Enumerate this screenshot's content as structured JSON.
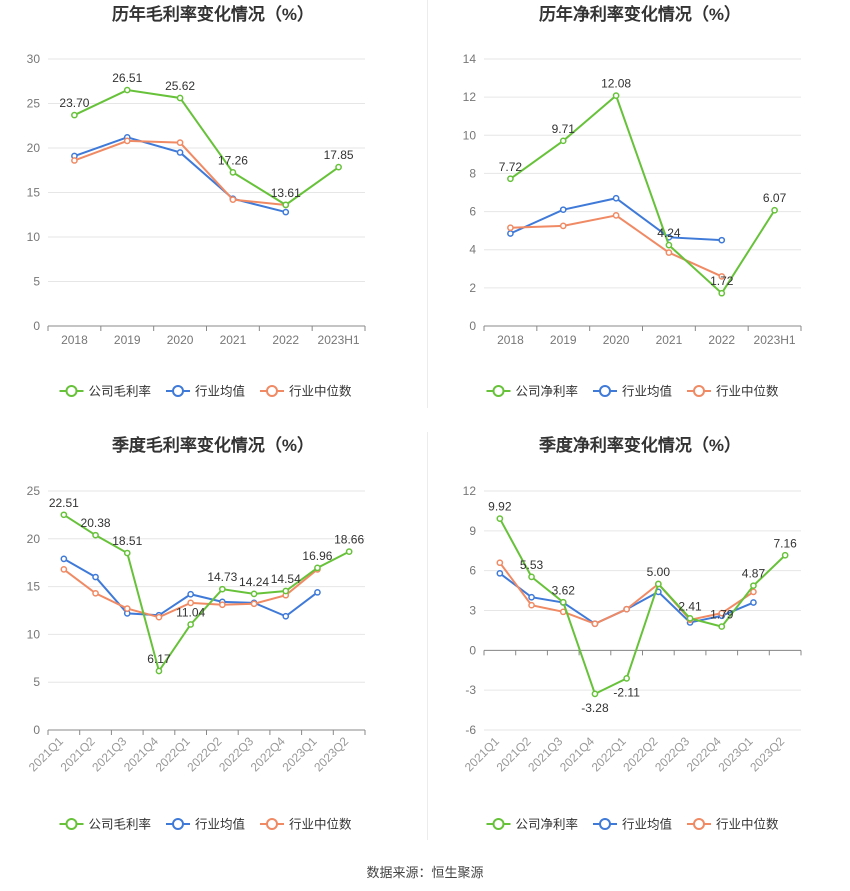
{
  "colors": {
    "company": "#67c23a",
    "avg": "#3f7ad9",
    "median": "#f08a64",
    "grid": "#e6e6e6",
    "axis": "#666666"
  },
  "source": "数据来源：恒生聚源",
  "chart_data": [
    {
      "type": "line",
      "title": "历年毛利率变化情况（%）",
      "categories": [
        "2018",
        "2019",
        "2020",
        "2021",
        "2022",
        "2023H1"
      ],
      "ylim": [
        0,
        30
      ],
      "yticks": [
        0,
        5,
        10,
        15,
        20,
        25,
        30
      ],
      "rotate_x_labels": false,
      "legend_position": "bottom",
      "series": [
        {
          "name": "公司毛利率",
          "role": "company",
          "values": [
            23.7,
            26.51,
            25.62,
            17.26,
            13.61,
            17.85
          ],
          "labels": [
            "23.70",
            "26.51",
            "25.62",
            "17.26",
            "13.61",
            "17.85"
          ]
        },
        {
          "name": "行业均值",
          "role": "avg",
          "values": [
            19.1,
            21.2,
            19.5,
            14.3,
            12.8,
            null
          ]
        },
        {
          "name": "行业中位数",
          "role": "median",
          "values": [
            18.6,
            20.8,
            20.6,
            14.2,
            13.6,
            null
          ]
        }
      ]
    },
    {
      "type": "line",
      "title": "历年净利率变化情况（%）",
      "categories": [
        "2018",
        "2019",
        "2020",
        "2021",
        "2022",
        "2023H1"
      ],
      "ylim": [
        0,
        14
      ],
      "yticks": [
        0,
        2,
        4,
        6,
        8,
        10,
        12,
        14
      ],
      "rotate_x_labels": false,
      "legend_position": "bottom",
      "series": [
        {
          "name": "公司净利率",
          "role": "company",
          "values": [
            7.72,
            9.71,
            12.08,
            4.24,
            1.72,
            6.07
          ],
          "labels": [
            "7.72",
            "9.71",
            "12.08",
            "4.24",
            "1.72",
            "6.07"
          ]
        },
        {
          "name": "行业均值",
          "role": "avg",
          "values": [
            4.85,
            6.1,
            6.7,
            4.65,
            4.5,
            null
          ]
        },
        {
          "name": "行业中位数",
          "role": "median",
          "values": [
            5.15,
            5.25,
            5.8,
            3.85,
            2.6,
            null
          ]
        }
      ]
    },
    {
      "type": "line",
      "title": "季度毛利率变化情况（%）",
      "categories": [
        "2021Q1",
        "2021Q2",
        "2021Q3",
        "2021Q4",
        "2022Q1",
        "2022Q2",
        "2022Q3",
        "2022Q4",
        "2023Q1",
        "2023Q2"
      ],
      "ylim": [
        0,
        25
      ],
      "yticks": [
        0,
        5,
        10,
        15,
        20,
        25
      ],
      "rotate_x_labels": true,
      "legend_position": "bottom",
      "series": [
        {
          "name": "公司毛利率",
          "role": "company",
          "values": [
            22.51,
            20.38,
            18.51,
            6.17,
            11.04,
            14.73,
            14.24,
            14.54,
            16.96,
            18.66
          ],
          "labels": [
            "22.51",
            "20.38",
            "18.51",
            "6.17",
            "11.04",
            "14.73",
            "14.24",
            "14.54",
            "16.96",
            "18.66"
          ]
        },
        {
          "name": "行业均值",
          "role": "avg",
          "values": [
            17.9,
            16.0,
            12.2,
            12.0,
            14.2,
            13.4,
            13.3,
            11.9,
            14.4,
            null
          ]
        },
        {
          "name": "行业中位数",
          "role": "median",
          "values": [
            16.8,
            14.3,
            12.7,
            11.8,
            13.3,
            13.1,
            13.2,
            14.1,
            16.8,
            null
          ]
        }
      ]
    },
    {
      "type": "line",
      "title": "季度净利率变化情况（%）",
      "categories": [
        "2021Q1",
        "2021Q2",
        "2021Q3",
        "2021Q4",
        "2022Q1",
        "2022Q2",
        "2022Q3",
        "2022Q4",
        "2023Q1",
        "2023Q2"
      ],
      "ylim": [
        -6,
        12
      ],
      "yticks": [
        -6,
        -3,
        0,
        3,
        6,
        9,
        12
      ],
      "rotate_x_labels": true,
      "legend_position": "bottom",
      "series": [
        {
          "name": "公司净利率",
          "role": "company",
          "values": [
            9.92,
            5.53,
            3.62,
            -3.28,
            -2.11,
            5.0,
            2.41,
            1.79,
            4.87,
            7.16
          ],
          "labels": [
            "9.92",
            "5.53",
            "3.62",
            "-3.28",
            "-2.11",
            "5.00",
            "2.41",
            "1.79",
            "4.87",
            "7.16"
          ]
        },
        {
          "name": "行业均值",
          "role": "avg",
          "values": [
            5.8,
            4.0,
            3.6,
            2.0,
            3.1,
            4.4,
            2.1,
            2.6,
            3.6,
            null
          ]
        },
        {
          "name": "行业中位数",
          "role": "median",
          "values": [
            6.6,
            3.4,
            2.9,
            2.0,
            3.1,
            5.0,
            2.3,
            2.8,
            4.4,
            null
          ]
        }
      ]
    }
  ]
}
